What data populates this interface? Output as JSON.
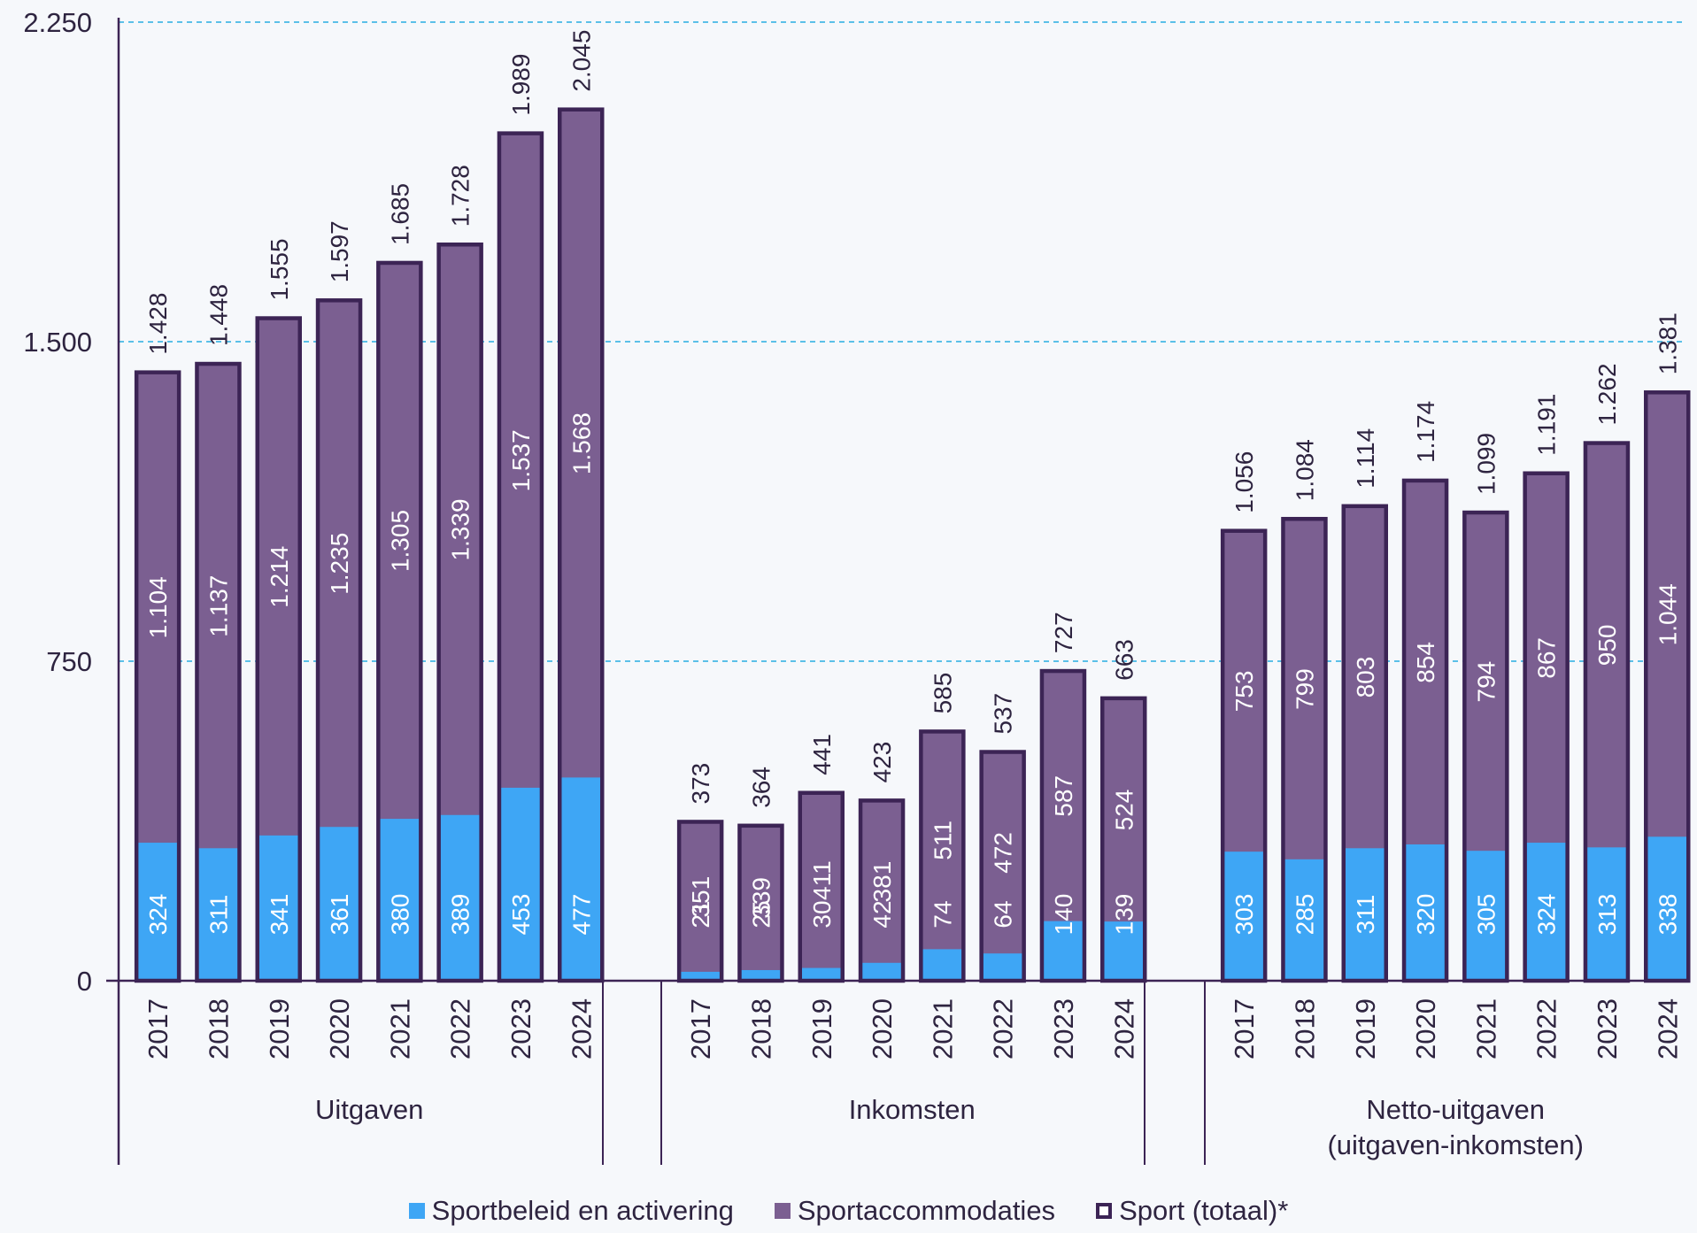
{
  "chart_data": {
    "type": "bar",
    "stacked": true,
    "y_axis": {
      "ylim": [
        0,
        2250
      ],
      "ticks": [
        0,
        750,
        1500,
        2250
      ],
      "tick_labels": [
        "0",
        "750",
        "1.500",
        "2.250"
      ],
      "gridlines": "dashed"
    },
    "groups": [
      {
        "label": "Uitgaven",
        "categories": [
          "2017",
          "2018",
          "2019",
          "2020",
          "2021",
          "2022",
          "2023",
          "2024"
        ],
        "sportbeleid": [
          324,
          311,
          341,
          361,
          380,
          389,
          453,
          477
        ],
        "sportbeleid_labels": [
          "324",
          "311",
          "341",
          "361",
          "380",
          "389",
          "453",
          "477"
        ],
        "sportaccommodaties": [
          1104,
          1137,
          1214,
          1235,
          1305,
          1339,
          1537,
          1568
        ],
        "sportaccommodaties_labels": [
          "1.104",
          "1.137",
          "1.214",
          "1.235",
          "1.305",
          "1.339",
          "1.537",
          "1.568"
        ],
        "totaal": [
          1428,
          1448,
          1555,
          1597,
          1685,
          1728,
          1989,
          2045
        ],
        "totaal_labels": [
          "1.428",
          "1.448",
          "1.555",
          "1.597",
          "1.685",
          "1.728",
          "1.989",
          "2.045"
        ]
      },
      {
        "label": "Inkomsten",
        "categories": [
          "2017",
          "2018",
          "2019",
          "2020",
          "2021",
          "2022",
          "2023",
          "2024"
        ],
        "sportbeleid": [
          21,
          25,
          30,
          42,
          74,
          64,
          140,
          139
        ],
        "sportbeleid_labels": [
          "21",
          "25",
          "30",
          "42",
          "74",
          "64",
          "140",
          "139"
        ],
        "sportaccommodaties": [
          351,
          339,
          411,
          381,
          511,
          472,
          587,
          524
        ],
        "sportaccommodaties_labels": [
          "351",
          "339",
          "411",
          "381",
          "511",
          "472",
          "587",
          "524"
        ],
        "totaal": [
          373,
          364,
          441,
          423,
          585,
          537,
          727,
          663
        ],
        "totaal_labels": [
          "373",
          "364",
          "441",
          "423",
          "585",
          "537",
          "727",
          "663"
        ]
      },
      {
        "label": "Netto-uitgaven\n(uitgaven-inkomsten)",
        "label_lines": [
          "Netto-uitgaven",
          "(uitgaven-inkomsten)"
        ],
        "categories": [
          "2017",
          "2018",
          "2019",
          "2020",
          "2021",
          "2022",
          "2023",
          "2024"
        ],
        "sportbeleid": [
          303,
          285,
          311,
          320,
          305,
          324,
          313,
          338
        ],
        "sportbeleid_labels": [
          "303",
          "285",
          "311",
          "320",
          "305",
          "324",
          "313",
          "338"
        ],
        "sportaccommodaties": [
          753,
          799,
          803,
          854,
          794,
          867,
          950,
          1044
        ],
        "sportaccommodaties_labels": [
          "753",
          "799",
          "803",
          "854",
          "794",
          "867",
          "950",
          "1.044"
        ],
        "totaal": [
          1056,
          1084,
          1114,
          1174,
          1099,
          1191,
          1262,
          1381
        ],
        "totaal_labels": [
          "1.056",
          "1.084",
          "1.114",
          "1.174",
          "1.099",
          "1.191",
          "1.262",
          "1.381"
        ]
      }
    ],
    "legend": {
      "placement": "bottom",
      "items": [
        {
          "key": "sportbeleid",
          "label": "Sportbeleid en activering",
          "color": "#3ea6f5"
        },
        {
          "key": "sportaccommodaties",
          "label": "Sportaccommodaties",
          "color": "#7b5f91"
        },
        {
          "key": "totaal",
          "label": "Sport (totaal)*",
          "color": "#3c2455"
        }
      ]
    },
    "colors": {
      "sportbeleid": "#3ea6f5",
      "sportaccommodaties": "#7b5f91",
      "totaal_outline": "#3c2455",
      "gridline": "#5bc0e8"
    }
  }
}
